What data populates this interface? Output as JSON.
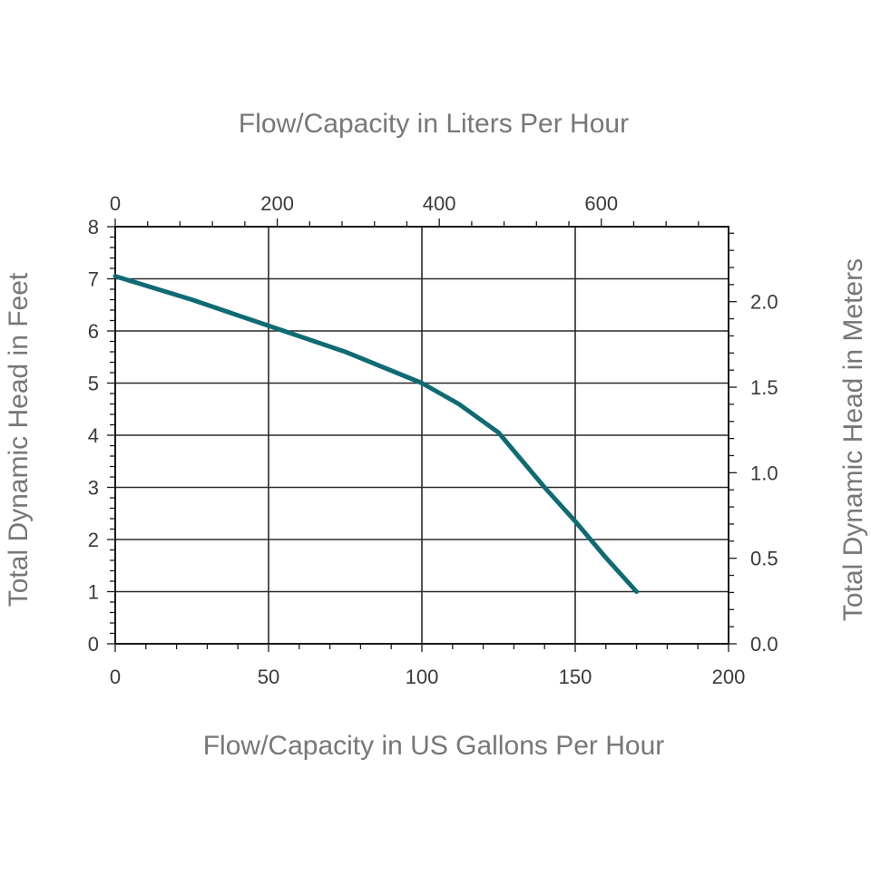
{
  "chart_data": {
    "type": "line",
    "x_label_bottom": "Flow/Capacity in US Gallons Per Hour",
    "x_label_top": "Flow/Capacity in Liters Per Hour",
    "y_label_left": "Total Dynamic Head in Feet",
    "y_label_right": "Total Dynamic Head in Meters",
    "x_bottom": {
      "range": [
        0,
        200
      ],
      "ticks": [
        "0",
        "50",
        "100",
        "150",
        "200"
      ]
    },
    "x_top": {
      "ticks": [
        "0",
        "200",
        "400",
        "600"
      ]
    },
    "y_left": {
      "range": [
        0,
        8
      ],
      "ticks": [
        "0",
        "1",
        "2",
        "3",
        "4",
        "5",
        "6",
        "7",
        "8"
      ]
    },
    "y_right": {
      "ticks": [
        "0.0",
        "0.5",
        "1.0",
        "1.5",
        "2.0"
      ]
    },
    "grid": true,
    "series": [
      {
        "color": "#0f6b73",
        "x": [
          0,
          25,
          50,
          75,
          100,
          112,
          125,
          140,
          150,
          160,
          170
        ],
        "y": [
          7.05,
          6.6,
          6.1,
          5.6,
          5.0,
          4.6,
          4.05,
          3.0,
          2.35,
          1.65,
          1.0
        ]
      }
    ]
  }
}
